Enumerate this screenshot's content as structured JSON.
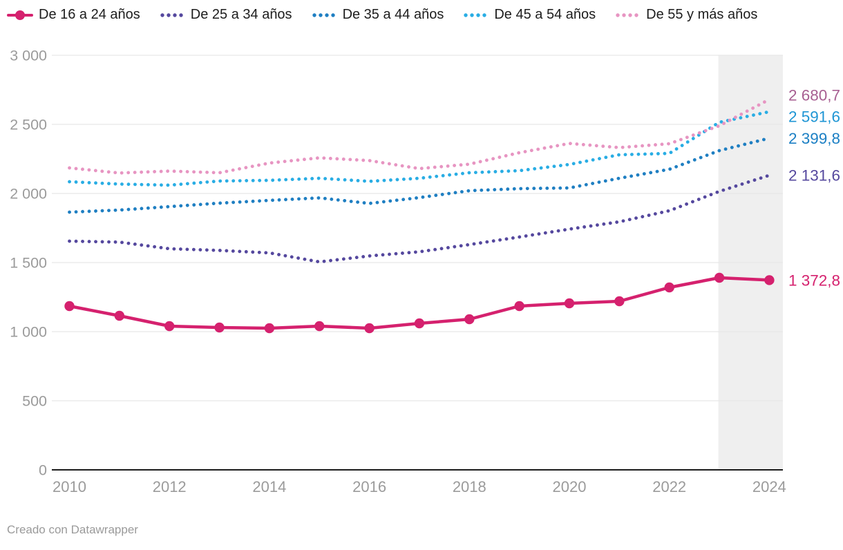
{
  "legend": {
    "items": [
      {
        "label": "De 16 a 24 años",
        "color": "#d5216e",
        "symbol": "line-dot"
      },
      {
        "label": "De 25 a 34 años",
        "color": "#55489e",
        "symbol": "dots"
      },
      {
        "label": "De 35 a 44 años",
        "color": "#1f7fc2",
        "symbol": "dots"
      },
      {
        "label": "De 45 a 54 años",
        "color": "#29ade4",
        "symbol": "dots"
      },
      {
        "label": "De 55 y más años",
        "color": "#e795c2",
        "symbol": "dots"
      }
    ]
  },
  "footer": {
    "text": "Creado con Datawrapper"
  },
  "chart_data": {
    "type": "line",
    "x": [
      2010,
      2011,
      2012,
      2013,
      2014,
      2015,
      2016,
      2017,
      2018,
      2019,
      2020,
      2021,
      2022,
      2023,
      2024
    ],
    "x_tick_labels": [
      "2010",
      "2012",
      "2014",
      "2016",
      "2018",
      "2020",
      "2022",
      "2024"
    ],
    "y_ticks": [
      0,
      500,
      1000,
      1500,
      2000,
      2500,
      3000
    ],
    "y_tick_labels": [
      "0",
      "500",
      "1 000",
      "1 500",
      "2 000",
      "2 500",
      "3 000"
    ],
    "ylim": [
      0,
      3000
    ],
    "grid": true,
    "legend_position": "top",
    "highlight_region": {
      "from_x": 2023,
      "to_x": "plot-right-edge",
      "fill": "#efefef"
    },
    "axis_colors": {
      "tick_text": "#9b9b9b",
      "gridline": "#e6e6e6",
      "baseline": "#1a1a1a"
    },
    "series": [
      {
        "name": "De 16 a 24 años",
        "style": "solid-markers",
        "color": "#d5216e",
        "label_color": "#d5216e",
        "end_label": "1 372,8",
        "values": [
          1185,
          1115,
          1040,
          1030,
          1025,
          1040,
          1025,
          1060,
          1090,
          1185,
          1205,
          1220,
          1320,
          1390,
          1372.8
        ]
      },
      {
        "name": "De 25 a 34 años",
        "style": "dotted",
        "color": "#55489e",
        "label_color": "#55489e",
        "end_label": "2 131,6",
        "values": [
          1655,
          1648,
          1600,
          1588,
          1570,
          1505,
          1548,
          1578,
          1630,
          1685,
          1742,
          1795,
          1875,
          2015,
          2131.6
        ]
      },
      {
        "name": "De 35 a 44 años",
        "style": "dotted",
        "color": "#1f7fc2",
        "label_color": "#1b7fc4",
        "end_label": "2 399,8",
        "values": [
          1865,
          1880,
          1905,
          1930,
          1950,
          1968,
          1928,
          1970,
          2020,
          2035,
          2040,
          2110,
          2175,
          2310,
          2399.8
        ]
      },
      {
        "name": "De 45 a 54 años",
        "style": "dotted",
        "color": "#29ade4",
        "label_color": "#1e95d4",
        "end_label": "2 591,6",
        "values": [
          2085,
          2068,
          2060,
          2090,
          2095,
          2110,
          2088,
          2110,
          2150,
          2165,
          2210,
          2280,
          2290,
          2515,
          2591.6
        ]
      },
      {
        "name": "De 55 y más años",
        "style": "dotted",
        "color": "#e795c2",
        "label_color": "#a75f92",
        "end_label": "2 680,7",
        "values": [
          2185,
          2148,
          2162,
          2150,
          2220,
          2258,
          2238,
          2180,
          2212,
          2295,
          2362,
          2332,
          2360,
          2490,
          2680.7
        ]
      }
    ]
  }
}
